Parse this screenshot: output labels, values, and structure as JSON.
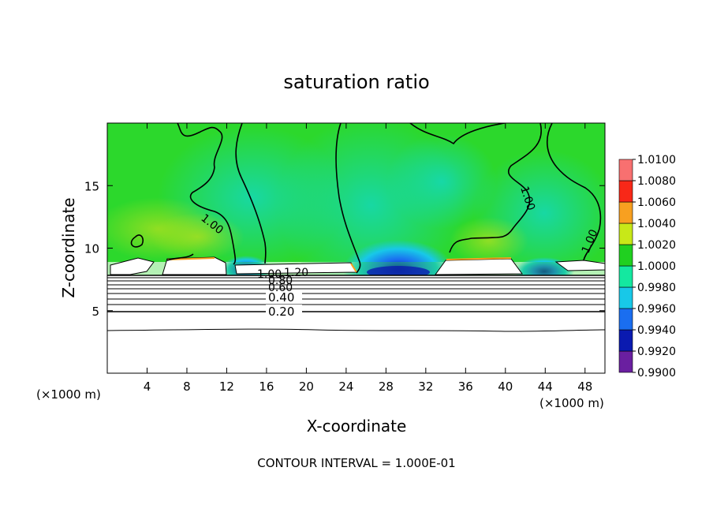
{
  "chart_data": {
    "type": "heatmap",
    "title": "saturation ratio",
    "xlabel": "X-coordinate",
    "ylabel": "Z-coordinate",
    "x_unit_left": "(×1000 m)",
    "x_unit_right": "(×1000 m)",
    "xlim": [
      0,
      50
    ],
    "ylim": [
      0,
      20
    ],
    "x_ticks": [
      4,
      8,
      12,
      16,
      20,
      24,
      28,
      32,
      36,
      40,
      44,
      48
    ],
    "y_ticks": [
      5,
      10,
      15
    ],
    "colorbar": {
      "levels": [
        "0.9900",
        "0.9920",
        "0.9940",
        "0.9960",
        "0.9980",
        "1.0000",
        "1.0020",
        "1.0040",
        "1.0060",
        "1.0080",
        "1.0100"
      ],
      "colors": [
        "#6a1fa0",
        "#0a1ab0",
        "#1a6ef0",
        "#18c8e8",
        "#14e8a0",
        "#20d020",
        "#c8e818",
        "#f8a020",
        "#f82818",
        "#f87070"
      ]
    },
    "contour_labels": [
      "1.00",
      "1.00",
      "1.00",
      "0.20",
      "0.40",
      "0.60",
      "0.80",
      "1.00",
      "1.20"
    ],
    "footer": "CONTOUR INTERVAL = 1.000E-01"
  }
}
